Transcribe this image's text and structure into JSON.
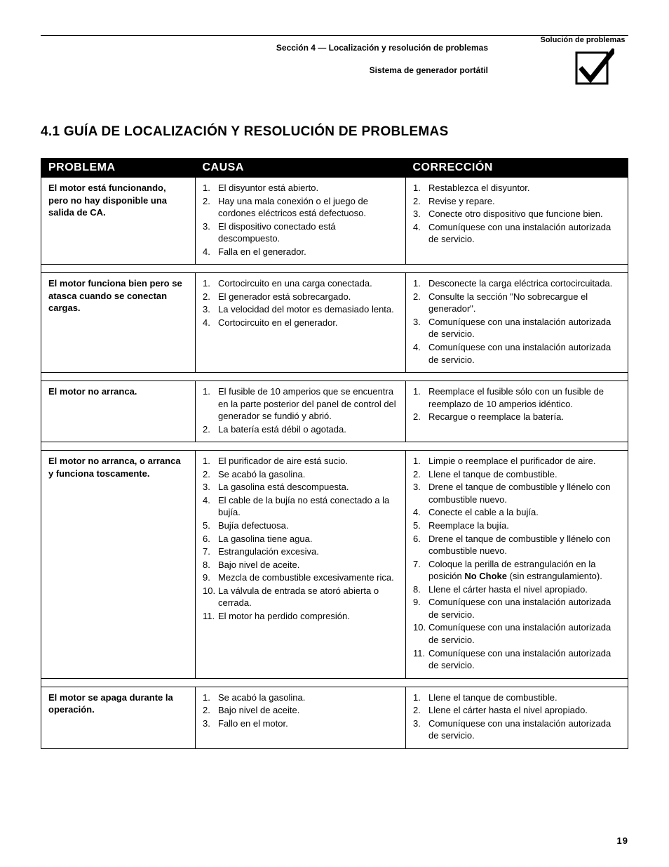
{
  "header": {
    "section_line": "Sección 4 — Localización y resolución de problemas",
    "subtitle": "Sistema de generador portátil",
    "corner_label": "Solución de problemas"
  },
  "title": "4.1  GUÍA DE LOCALIZACIÓN Y RESOLUCIÓN DE PROBLEMAS",
  "table_headers": {
    "problem": "PROBLEMA",
    "cause": "CAUSA",
    "correction": "CORRECCIÓN"
  },
  "rows": [
    {
      "problem": "El motor está funcionando, pero no hay disponible una salida de CA.",
      "causes": [
        "El disyuntor está abierto.",
        "Hay una mala conexión o el juego de cordones eléctricos está defectuoso.",
        "El dispositivo conectado está descompuesto.",
        "Falla en el generador."
      ],
      "fixes": [
        "Restablezca el disyuntor.",
        "Revise y repare.",
        "Conecte otro dispositivo que funcione bien.",
        "Comuníquese con una instalación autorizada de servicio."
      ]
    },
    {
      "problem": "El motor funciona bien pero se atasca cuando se conectan cargas.",
      "causes": [
        "Cortocircuito en una carga conectada.",
        "El generador está sobrecargado.",
        "La velocidad del motor es demasiado lenta.",
        "Cortocircuito en el generador."
      ],
      "fixes": [
        "Desconecte la carga eléctrica cortocircuitada.",
        "Consulte la sección \"No sobrecargue el generador\".",
        "Comuníquese con una instalación autorizada de servicio.",
        "Comuníquese con una instalación autorizada de servicio."
      ]
    },
    {
      "problem": "El motor no arranca.",
      "causes": [
        "El fusible de 10 amperios que se encuentra en la parte posterior del panel de control del generador se fundió y abrió.",
        "La batería está débil o agotada."
      ],
      "fixes": [
        "Reemplace el fusible sólo con un fusible de reemplazo de 10 amperios idéntico.",
        "Recargue o reemplace la batería."
      ]
    },
    {
      "problem": "El motor no arranca, o arranca y funciona toscamente.",
      "causes": [
        "El purificador de aire está sucio.",
        "Se acabó la gasolina.",
        "La gasolina está descompuesta.",
        "El cable de la bujía no está conectado a la bujía.",
        "Bujía defectuosa.",
        "La gasolina tiene agua.",
        "Estrangulación excesiva.",
        "Bajo nivel de aceite.",
        "Mezcla de combustible excesivamente rica.",
        "La válvula de entrada se atoró abierta o cerrada.",
        "El motor ha perdido compresión."
      ],
      "fixes_raw": [
        {
          "n": "1.",
          "t": "Limpie o reemplace el purificador de aire."
        },
        {
          "n": "2.",
          "t": "Llene el tanque de combustible."
        },
        {
          "n": "3.",
          "t": "Drene el tanque de combustible y llénelo con combustible nuevo."
        },
        {
          "n": "4.",
          "t": "Conecte el cable a la bujía."
        },
        {
          "n": "5.",
          "t": "Reemplace la bujía."
        },
        {
          "n": "6.",
          "t": "Drene el tanque de combustible y llénelo con combustible nuevo."
        },
        {
          "n": "7.",
          "t_html": "Coloque la perilla de estrangulación en la posición <b>No Choke</b> (sin estrangulamiento)."
        },
        {
          "n": "8.",
          "t": "Llene el cárter hasta el nivel apropiado."
        },
        {
          "n": "9.",
          "t": "Comuníquese con una instalación autorizada de servicio."
        },
        {
          "n": "10.",
          "t": "Comuníquese con una instalación autorizada de servicio."
        },
        {
          "n": "11.",
          "t": "Comuníquese con una instalación autorizada de servicio."
        }
      ]
    },
    {
      "problem": "El motor se apaga durante la operación.",
      "causes": [
        "Se acabó la gasolina.",
        "Bajo nivel de aceite.",
        "Fallo en el motor."
      ],
      "fixes": [
        "Llene el tanque de combustible.",
        "Llene el cárter hasta el nivel apropiado.",
        "Comuníquese con una instalación autorizada de servicio."
      ]
    }
  ],
  "page_number": "19",
  "colors": {
    "header_bg": "#000000",
    "header_fg": "#ffffff",
    "border": "#000000"
  }
}
